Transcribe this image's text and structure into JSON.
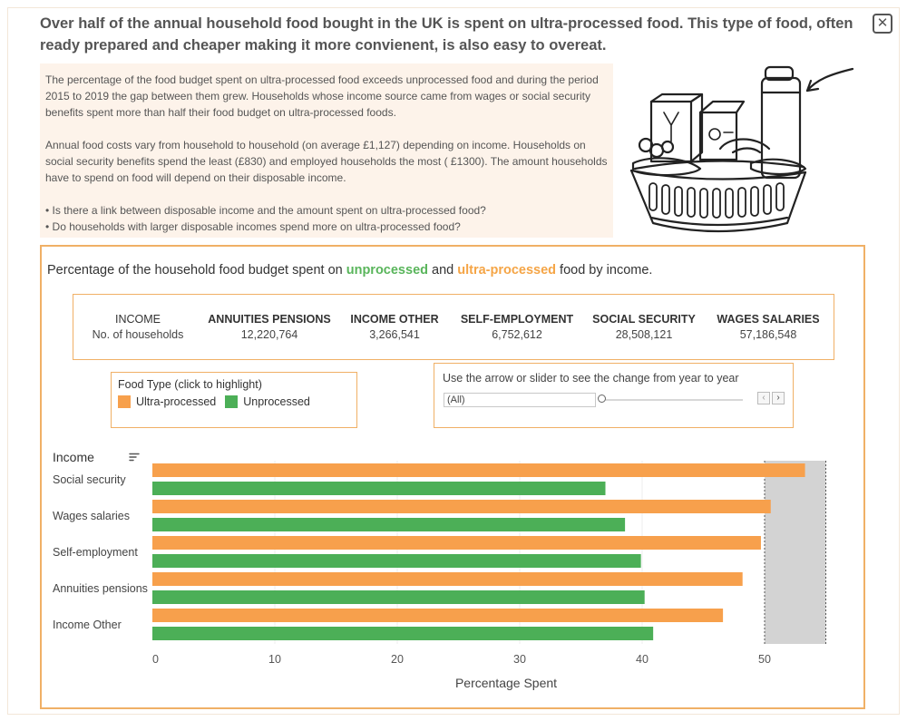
{
  "headline": "Over half of the annual household food bought in the UK is spent on ultra-processed food. This type of food, often ready prepared and cheaper making it more convienent, is also easy to overeat.",
  "close_label": "✕",
  "intro": {
    "p1": "The percentage of the food budget spent on ultra-processed food  exceeds unprocessed food and during the period  2015 to 2019 the gap between them grew. Households whose income source came from wages or social security benefits spent more than half their food budget on ultra-processed foods.",
    "p2": "Annual food costs vary  from household to household (on average £1,127) depending on income. Households on social security benefits spend the least (£830) and employed households the most ( £1300). The amount households have to spend on food will depend on their disposable income.",
    "b1": "• Is there a link between disposable income and the amount spent on ultra-processed food?",
    "b2": "• Do households with larger disposable incomes spend more on ultra-processed food?"
  },
  "chart_title": {
    "pre": "Percentage of the household food budget spent on ",
    "unprocessed": "unprocessed",
    "mid": " and ",
    "ultra": "ultra-processed",
    "post": " food by income."
  },
  "households": {
    "income_label": "INCOME",
    "count_label": "No. of households",
    "columns": [
      {
        "name": "ANNUITIES PENSIONS",
        "value": "12,220,764"
      },
      {
        "name": "INCOME OTHER",
        "value": "3,266,541"
      },
      {
        "name": "SELF-EMPLOYMENT",
        "value": "6,752,612"
      },
      {
        "name": "SOCIAL SECURITY",
        "value": "28,508,121"
      },
      {
        "name": "WAGES SALARIES",
        "value": "57,186,548"
      }
    ]
  },
  "legend": {
    "title": "Food Type (click to highlight)",
    "items": [
      {
        "label": "Ultra-processed",
        "color": "#f7a04c"
      },
      {
        "label": "Unprocessed",
        "color": "#4caf57"
      }
    ]
  },
  "slider": {
    "label": "Use the arrow or slider to see the change from year to year",
    "selected": "(All)",
    "prev_icon": "‹",
    "next_icon": "›"
  },
  "chart_data": {
    "type": "bar",
    "orientation": "horizontal",
    "ylabel": "Income",
    "xlabel": "Percentage Spent",
    "xlim": [
      0,
      55
    ],
    "xticks": [
      0,
      10,
      20,
      30,
      40,
      50
    ],
    "categories": [
      "Social security",
      "Wages salaries",
      "Self-employment",
      "Annuities pensions",
      "Income Other"
    ],
    "series": [
      {
        "name": "Ultra-processed",
        "color": "#f7a04c",
        "values": [
          53.3,
          50.5,
          49.7,
          48.2,
          46.6
        ]
      },
      {
        "name": "Unprocessed",
        "color": "#4caf57",
        "values": [
          37.0,
          38.6,
          39.9,
          40.2,
          40.9
        ]
      }
    ],
    "highlight_band": [
      50,
      55
    ],
    "grid": true
  }
}
